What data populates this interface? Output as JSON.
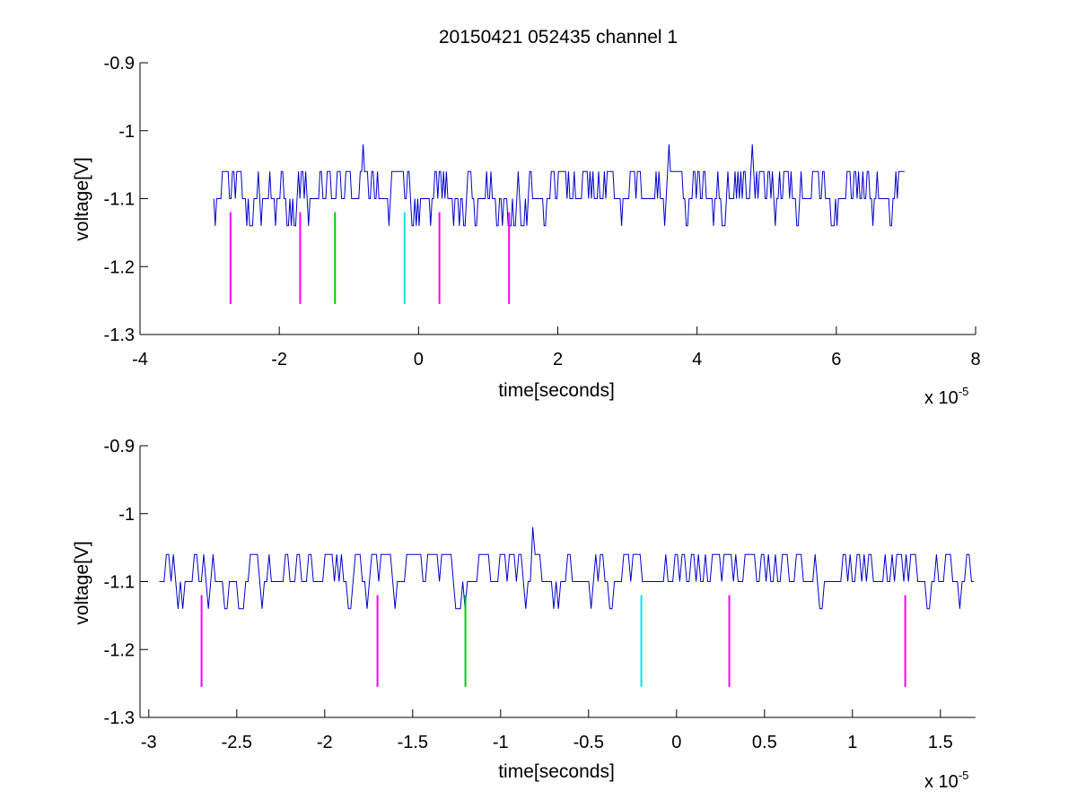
{
  "figure": {
    "title": "20150421 052435 channel 1"
  },
  "chart_data": [
    {
      "type": "line",
      "xlabel": "time[seconds]",
      "ylabel": "voltage[V]",
      "x_exponent_label": "x 10",
      "x_exponent": "-5",
      "xlim": [
        -4e-05,
        8e-05
      ],
      "ylim": [
        -1.3,
        -0.9
      ],
      "xticks": [
        -4e-05,
        -2e-05,
        0,
        2e-05,
        4e-05,
        6e-05,
        8e-05
      ],
      "xtick_labels": [
        "-4",
        "-2",
        "0",
        "2",
        "4",
        "6",
        "8"
      ],
      "yticks": [
        -1.3,
        -1.2,
        -1.1,
        -1.0,
        -0.9
      ],
      "ytick_labels": [
        "-1.3",
        "-1.2",
        "-1.1",
        "-1",
        "-0.9"
      ],
      "grid": false,
      "signal": {
        "color": "#0000cc",
        "x_start": -2.94e-05,
        "x_end": 7e-05,
        "baseline": -1.1,
        "levels": [
          -1.14,
          -1.1,
          -1.06
        ],
        "spikes": [
          {
            "x": -8e-06,
            "y": -1.02
          },
          {
            "x": 3.6e-05,
            "y": -1.02
          },
          {
            "x": 4.8e-05,
            "y": -1.02
          }
        ]
      },
      "markers": [
        {
          "x": -2.7e-05,
          "y_top": -1.12,
          "y_bottom": -1.255,
          "color": "#ff00ff"
        },
        {
          "x": -1.7e-05,
          "y_top": -1.12,
          "y_bottom": -1.255,
          "color": "#ff00ff"
        },
        {
          "x": -1.2e-05,
          "y_top": -1.12,
          "y_bottom": -1.255,
          "color": "#00cc00"
        },
        {
          "x": -2e-06,
          "y_top": -1.12,
          "y_bottom": -1.255,
          "color": "#00e5e5"
        },
        {
          "x": 3e-06,
          "y_top": -1.12,
          "y_bottom": -1.255,
          "color": "#ff00ff"
        },
        {
          "x": 1.3e-05,
          "y_top": -1.12,
          "y_bottom": -1.255,
          "color": "#ff00ff"
        }
      ]
    },
    {
      "type": "line",
      "xlabel": "time[seconds]",
      "ylabel": "voltage[V]",
      "x_exponent_label": "x 10",
      "x_exponent": "-5",
      "xlim": [
        -3.05e-05,
        1.7e-05
      ],
      "ylim": [
        -1.3,
        -0.9
      ],
      "xticks": [
        -3e-05,
        -2.5e-05,
        -2e-05,
        -1.5e-05,
        -1e-05,
        -5e-06,
        0,
        5e-06,
        1e-05,
        1.5e-05
      ],
      "xtick_labels": [
        "-3",
        "-2.5",
        "-2",
        "-1.5",
        "-1",
        "-0.5",
        "0",
        "0.5",
        "1",
        "1.5"
      ],
      "yticks": [
        -1.3,
        -1.2,
        -1.1,
        -1.0,
        -0.9
      ],
      "ytick_labels": [
        "-1.3",
        "-1.2",
        "-1.1",
        "-1",
        "-0.9"
      ],
      "grid": false,
      "signal": {
        "color": "#0000cc",
        "x_start": -2.94e-05,
        "x_end": 1.7e-05,
        "baseline": -1.1,
        "levels": [
          -1.14,
          -1.1,
          -1.06
        ],
        "spikes": [
          {
            "x": -8.2e-06,
            "y": -1.02
          }
        ]
      },
      "markers": [
        {
          "x": -2.7e-05,
          "y_top": -1.12,
          "y_bottom": -1.255,
          "color": "#ff00ff"
        },
        {
          "x": -1.7e-05,
          "y_top": -1.12,
          "y_bottom": -1.255,
          "color": "#ff00ff"
        },
        {
          "x": -1.2e-05,
          "y_top": -1.12,
          "y_bottom": -1.255,
          "color": "#00cc00"
        },
        {
          "x": -2e-06,
          "y_top": -1.12,
          "y_bottom": -1.255,
          "color": "#00e5e5"
        },
        {
          "x": 3e-06,
          "y_top": -1.12,
          "y_bottom": -1.255,
          "color": "#ff00ff"
        },
        {
          "x": 1.3e-05,
          "y_top": -1.12,
          "y_bottom": -1.255,
          "color": "#ff00ff"
        }
      ]
    }
  ]
}
